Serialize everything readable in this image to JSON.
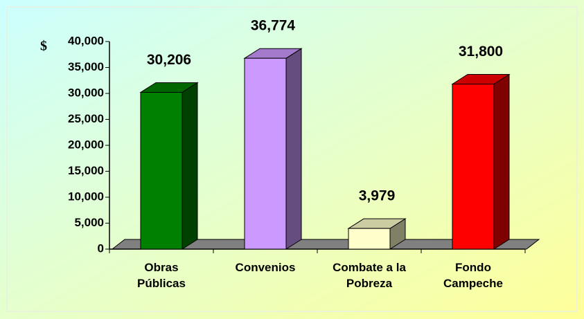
{
  "chart_data": {
    "type": "bar3d",
    "y_axis_label": "$",
    "categories": [
      "Obras\nPúblicas",
      "Convenios",
      "Combate a la\nPobreza",
      "Fondo\nCampeche"
    ],
    "values": [
      30206,
      36774,
      3979,
      31800
    ],
    "value_labels": [
      "30,206",
      "36,774",
      "3,979",
      "31,800"
    ],
    "colors": [
      "#008000",
      "#cc99ff",
      "#ffffcc",
      "#ff0000"
    ],
    "ylim": [
      0,
      40000
    ],
    "yticks": [
      0,
      {
        "value": 5000,
        "label": "5,000"
      },
      {
        "value": 10000,
        "label": "10,000"
      },
      {
        "value": 15000,
        "label": "15,000"
      },
      {
        "value": 20000,
        "label": "20,000"
      },
      {
        "value": 25000,
        "label": "25,000"
      },
      {
        "value": 30000,
        "label": "30,000"
      },
      {
        "value": 35000,
        "label": "35,000"
      },
      {
        "value": 40000,
        "label": "40,000"
      }
    ]
  }
}
